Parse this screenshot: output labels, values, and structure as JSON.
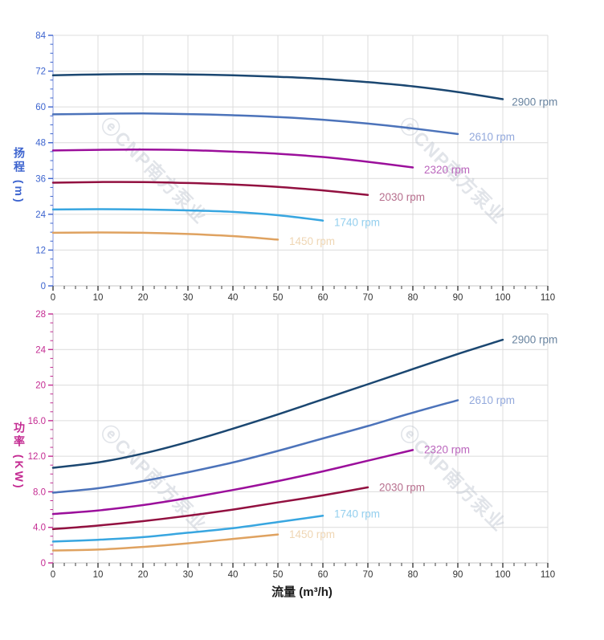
{
  "watermark": {
    "text": "ⓔCNP南方泵业",
    "color": "#b9c0cc"
  },
  "x_axis_title": "流量 (m³/h)",
  "chart_data": [
    {
      "type": "line",
      "name": "head-curves",
      "ylabel": "扬程 (m)",
      "xlabel": "流量 (m³/h)",
      "xlim": [
        0,
        110
      ],
      "ylim": [
        0,
        84
      ],
      "grid": "on",
      "legend_position": "inline-right-of-curve",
      "x_major_step": 10,
      "x_minor_step": 2.5,
      "y_major_step": 12,
      "y_minor_step": 3,
      "x_tick_labels": [
        "0",
        "10",
        "20",
        "30",
        "40",
        "50",
        "60",
        "70",
        "80",
        "90",
        "100",
        "110"
      ],
      "y_tick_labels": [
        "0",
        "12",
        "24",
        "36",
        "48",
        "60",
        "72",
        "84"
      ],
      "accent_color": "#3d64cf",
      "series": [
        {
          "name": "2900 rpm",
          "color": "#1b4771",
          "label_color": "#68839f",
          "label_at": [
            102,
            61.7
          ],
          "points": [
            [
              0,
              70.6
            ],
            [
              10,
              70.9
            ],
            [
              20,
              71.0
            ],
            [
              30,
              70.9
            ],
            [
              40,
              70.6
            ],
            [
              50,
              70.1
            ],
            [
              60,
              69.4
            ],
            [
              70,
              68.3
            ],
            [
              80,
              66.9
            ],
            [
              90,
              65.0
            ],
            [
              100,
              62.6
            ]
          ]
        },
        {
          "name": "2610 rpm",
          "color": "#4c73ba",
          "label_color": "#93a9dc",
          "label_at": [
            92.5,
            49.9
          ],
          "points": [
            [
              0,
              57.5
            ],
            [
              10,
              57.7
            ],
            [
              20,
              57.8
            ],
            [
              30,
              57.6
            ],
            [
              40,
              57.2
            ],
            [
              50,
              56.6
            ],
            [
              60,
              55.7
            ],
            [
              70,
              54.4
            ],
            [
              80,
              52.8
            ],
            [
              90,
              50.9
            ]
          ]
        },
        {
          "name": "2320 rpm",
          "color": "#9b0f9b",
          "label_color": "#bb66bd",
          "label_at": [
            82.5,
            38.9
          ],
          "points": [
            [
              0,
              45.4
            ],
            [
              10,
              45.6
            ],
            [
              20,
              45.7
            ],
            [
              30,
              45.5
            ],
            [
              40,
              45.0
            ],
            [
              50,
              44.3
            ],
            [
              60,
              43.2
            ],
            [
              70,
              41.6
            ],
            [
              80,
              39.7
            ]
          ]
        },
        {
          "name": "2030 rpm",
          "color": "#921040",
          "label_color": "#b76f8e",
          "label_at": [
            72.5,
            29.8
          ],
          "points": [
            [
              0,
              34.6
            ],
            [
              10,
              34.8
            ],
            [
              20,
              34.8
            ],
            [
              30,
              34.5
            ],
            [
              40,
              34.0
            ],
            [
              50,
              33.2
            ],
            [
              60,
              32.0
            ],
            [
              70,
              30.5
            ]
          ]
        },
        {
          "name": "1740 rpm",
          "color": "#38a6e0",
          "label_color": "#94cfee",
          "label_at": [
            62.5,
            21.3
          ],
          "points": [
            [
              0,
              25.6
            ],
            [
              10,
              25.7
            ],
            [
              20,
              25.6
            ],
            [
              30,
              25.3
            ],
            [
              40,
              24.8
            ],
            [
              50,
              23.7
            ],
            [
              60,
              21.9
            ]
          ]
        },
        {
          "name": "1450 rpm",
          "color": "#dfa260",
          "label_color": "#efd6b4",
          "label_at": [
            52.5,
            14.9
          ],
          "points": [
            [
              0,
              17.8
            ],
            [
              10,
              17.9
            ],
            [
              20,
              17.8
            ],
            [
              30,
              17.4
            ],
            [
              40,
              16.7
            ],
            [
              50,
              15.5
            ]
          ]
        }
      ]
    },
    {
      "type": "line",
      "name": "power-curves",
      "ylabel": "功率 (KW)",
      "xlabel": "流量 (m³/h)",
      "xlim": [
        0,
        110
      ],
      "ylim": [
        0,
        28
      ],
      "grid": "on",
      "legend_position": "inline-right-of-curve",
      "x_major_step": 10,
      "x_minor_step": 2.5,
      "y_major_step": 4,
      "y_minor_step": 1,
      "x_tick_labels": [
        "0",
        "10",
        "20",
        "30",
        "40",
        "50",
        "60",
        "70",
        "80",
        "90",
        "100",
        "110"
      ],
      "y_tick_labels": [
        "0",
        "4.0",
        "8.0",
        "12.0",
        "16.0",
        "20",
        "24",
        "28"
      ],
      "accent_color": "#c42b92",
      "series": [
        {
          "name": "2900 rpm",
          "color": "#1b4771",
          "label_color": "#68839f",
          "label_at": [
            102,
            25.1
          ],
          "points": [
            [
              0,
              10.7
            ],
            [
              10,
              11.3
            ],
            [
              20,
              12.3
            ],
            [
              30,
              13.6
            ],
            [
              40,
              15.1
            ],
            [
              50,
              16.7
            ],
            [
              60,
              18.4
            ],
            [
              70,
              20.1
            ],
            [
              80,
              21.8
            ],
            [
              90,
              23.5
            ],
            [
              100,
              25.1
            ]
          ]
        },
        {
          "name": "2610 rpm",
          "color": "#4c73ba",
          "label_color": "#93a9dc",
          "label_at": [
            92.5,
            18.3
          ],
          "points": [
            [
              0,
              7.9
            ],
            [
              10,
              8.4
            ],
            [
              20,
              9.2
            ],
            [
              30,
              10.2
            ],
            [
              40,
              11.3
            ],
            [
              50,
              12.6
            ],
            [
              60,
              14.0
            ],
            [
              70,
              15.4
            ],
            [
              80,
              16.9
            ],
            [
              90,
              18.3
            ]
          ]
        },
        {
          "name": "2320 rpm",
          "color": "#9b0f9b",
          "label_color": "#bb66bd",
          "label_at": [
            82.5,
            12.75
          ],
          "points": [
            [
              0,
              5.5
            ],
            [
              10,
              5.9
            ],
            [
              20,
              6.5
            ],
            [
              30,
              7.3
            ],
            [
              40,
              8.2
            ],
            [
              50,
              9.2
            ],
            [
              60,
              10.3
            ],
            [
              70,
              11.5
            ],
            [
              80,
              12.7
            ]
          ]
        },
        {
          "name": "2030 rpm",
          "color": "#921040",
          "label_color": "#b76f8e",
          "label_at": [
            72.5,
            8.5
          ],
          "points": [
            [
              0,
              3.8
            ],
            [
              10,
              4.2
            ],
            [
              20,
              4.7
            ],
            [
              30,
              5.3
            ],
            [
              40,
              6.0
            ],
            [
              50,
              6.8
            ],
            [
              60,
              7.6
            ],
            [
              70,
              8.5
            ]
          ]
        },
        {
          "name": "1740 rpm",
          "color": "#38a6e0",
          "label_color": "#94cfee",
          "label_at": [
            62.5,
            5.5
          ],
          "points": [
            [
              0,
              2.4
            ],
            [
              10,
              2.6
            ],
            [
              20,
              2.9
            ],
            [
              30,
              3.4
            ],
            [
              40,
              3.9
            ],
            [
              50,
              4.6
            ],
            [
              60,
              5.3
            ]
          ]
        },
        {
          "name": "1450 rpm",
          "color": "#dfa260",
          "label_color": "#efd6b4",
          "label_at": [
            52.5,
            3.2
          ],
          "points": [
            [
              0,
              1.4
            ],
            [
              10,
              1.5
            ],
            [
              20,
              1.8
            ],
            [
              30,
              2.2
            ],
            [
              40,
              2.7
            ],
            [
              50,
              3.2
            ]
          ]
        }
      ]
    }
  ]
}
